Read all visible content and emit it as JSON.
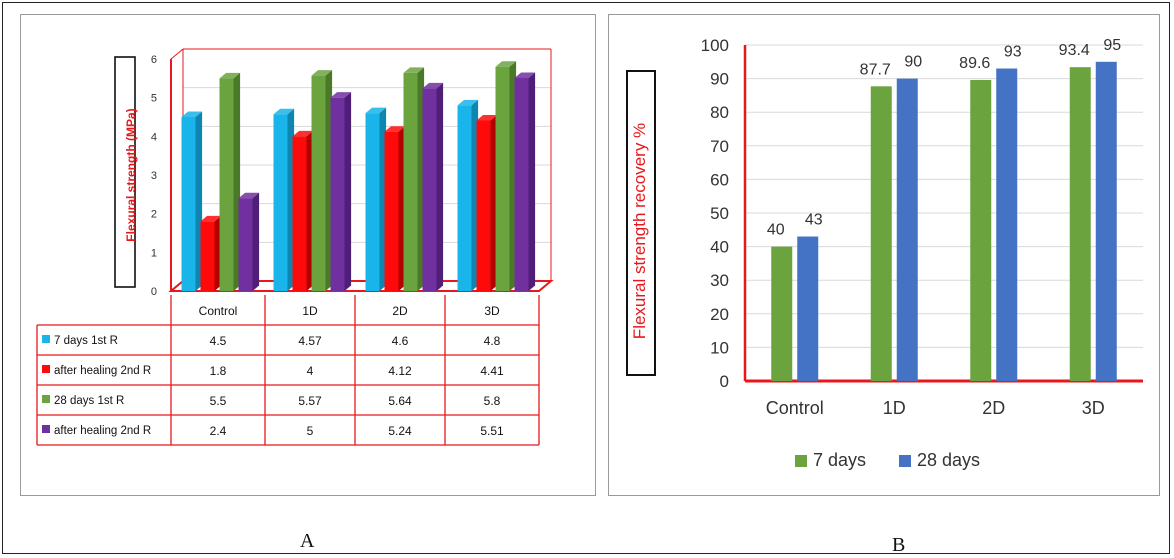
{
  "captions": {
    "a": "A",
    "b": "B"
  },
  "chart_data": [
    {
      "type": "bar",
      "ylabel": "Flexural strength (MPa)",
      "ylim": [
        0,
        6
      ],
      "yticks": [
        "0",
        "1",
        "2",
        "3",
        "4",
        "5",
        "6"
      ],
      "categories": [
        "Control",
        "1D",
        "2D",
        "3D"
      ],
      "series": [
        {
          "name": "7 days 1st R",
          "values": [
            4.5,
            4.57,
            4.6,
            4.8
          ],
          "labels": [
            "4.5",
            "4.57",
            "4.6",
            "4.8"
          ],
          "color": "#18b4ea",
          "side": "#0e86b2"
        },
        {
          "name": "after healing 2nd R",
          "values": [
            1.8,
            4,
            4.12,
            4.41
          ],
          "labels": [
            "1.8",
            "4",
            "4.12",
            "4.41"
          ],
          "color": "#ff0a0a",
          "side": "#b00000"
        },
        {
          "name": "28 days 1st R",
          "values": [
            5.5,
            5.57,
            5.64,
            5.8
          ],
          "labels": [
            "5.5",
            "5.57",
            "5.64",
            "5.8"
          ],
          "color": "#6ba33e",
          "side": "#4a7a28"
        },
        {
          "name": "after healing 2nd R",
          "values": [
            2.4,
            5,
            5.24,
            5.51
          ],
          "labels": [
            "2.4",
            "5",
            "5.24",
            "5.51"
          ],
          "color": "#7030a0",
          "side": "#4f1f77"
        }
      ],
      "grid": true,
      "legend": "data table below chart",
      "accent": "#e8171b"
    },
    {
      "type": "bar",
      "ylabel": "Flexural strength recovery %",
      "ylim": [
        0,
        100
      ],
      "yticks": [
        "0",
        "10",
        "20",
        "30",
        "40",
        "50",
        "60",
        "70",
        "80",
        "90",
        "100"
      ],
      "categories": [
        "Control",
        "1D",
        "2D",
        "3D"
      ],
      "series": [
        {
          "name": "7 days",
          "values": [
            40,
            87.7,
            89.6,
            93.4
          ],
          "labels": [
            "40",
            "87.7",
            "89.6",
            "93.4"
          ],
          "color": "#6ba33e"
        },
        {
          "name": "28 days",
          "values": [
            43,
            90,
            93,
            95
          ],
          "labels": [
            "43",
            "90",
            "93",
            "95"
          ],
          "color": "#4472c4"
        }
      ],
      "grid": true,
      "legend": "bottom",
      "accent": "#e8171b"
    }
  ]
}
